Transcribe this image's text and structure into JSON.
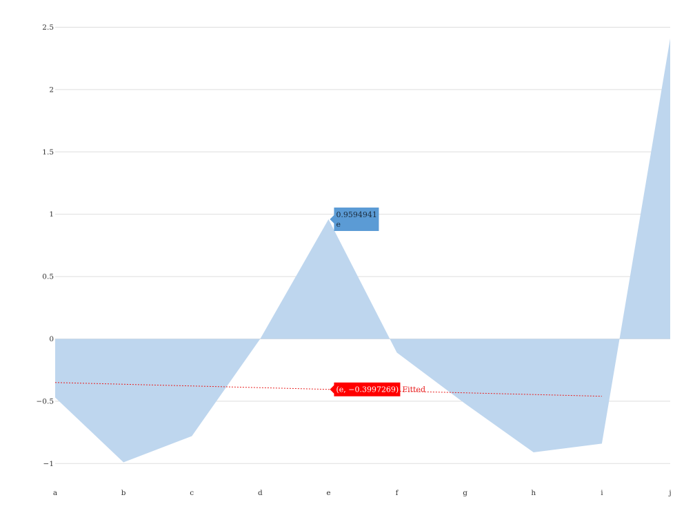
{
  "chart_data": {
    "type": "area",
    "categories": [
      "a",
      "b",
      "c",
      "d",
      "e",
      "f",
      "g",
      "h",
      "i",
      "j"
    ],
    "series": [
      {
        "values": [
          -0.47,
          -0.99,
          -0.78,
          0.0,
          0.9594941,
          -0.11,
          -0.52,
          -0.91,
          -0.84,
          2.41
        ],
        "color": "#bed6ee"
      }
    ],
    "trend": {
      "name": "Fitted",
      "start": -0.35,
      "end": -0.46,
      "x_end": "i",
      "color": "#e81c1c"
    },
    "ylim": [
      -1.1,
      2.5
    ],
    "yticks": [
      -1,
      -0.5,
      0,
      0.5,
      1,
      1.5,
      2,
      2.5
    ],
    "ytick_labels": [
      "−1",
      "−0.5",
      "0",
      "0.5",
      "1",
      "1.5",
      "2",
      "2.5"
    ],
    "grid": true,
    "tooltips": {
      "point": {
        "value": "0.9594941",
        "category": "e",
        "color": "#5b9bd5"
      },
      "fit": {
        "text": "(e, −0.3997269)",
        "label": "Fitted",
        "color": "#ff0000"
      }
    }
  }
}
